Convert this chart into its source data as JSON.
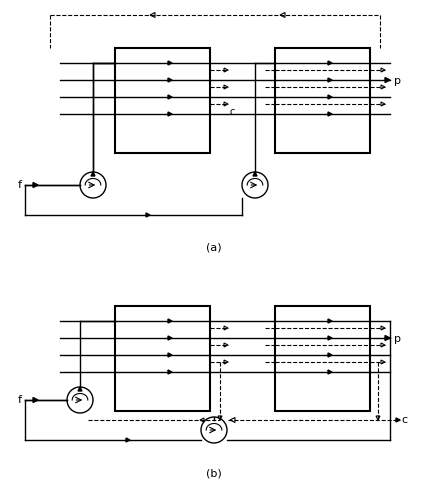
{
  "bg_color": "#ffffff",
  "line_color": "#000000",
  "dashed_color": "#000000",
  "fig_width": 4.29,
  "fig_height": 4.99,
  "label_a": "(a)",
  "label_b": "(b)",
  "label_f": "f",
  "label_p": "p",
  "label_c": "c"
}
